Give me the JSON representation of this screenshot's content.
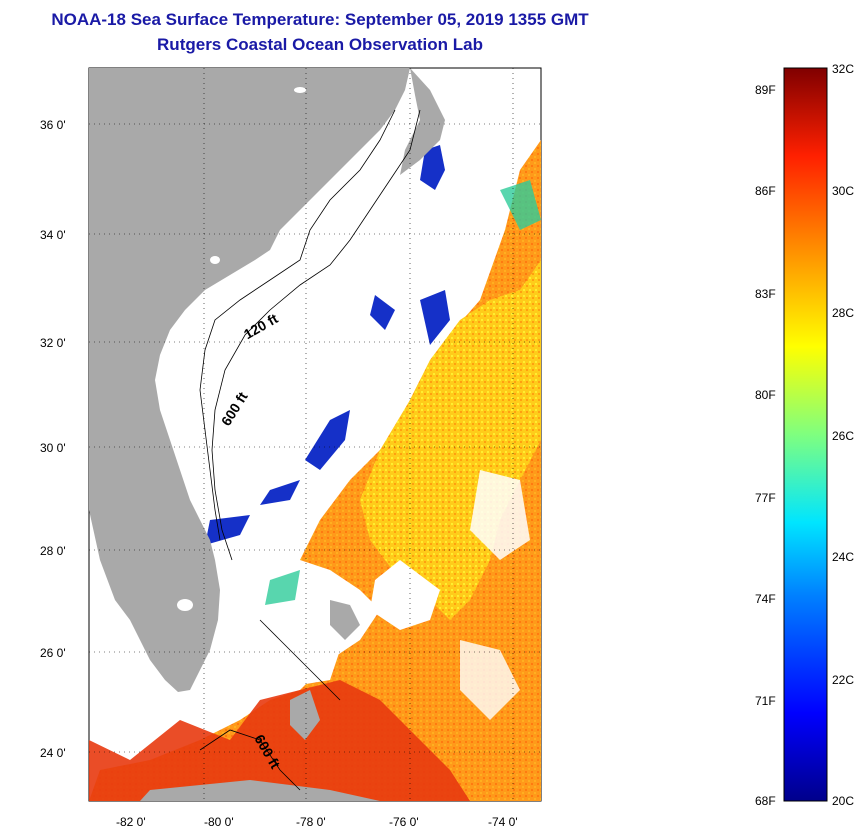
{
  "header": {
    "title": "NOAA-18 Sea Surface Temperature:  September 05, 2019 1355 GMT",
    "subtitle": "Rutgers Coastal Ocean Observation Lab"
  },
  "map": {
    "lon_ticks": [
      "-82 0'",
      "-80 0'",
      "-78 0'",
      "-76 0'",
      "-74 0'"
    ],
    "lat_ticks": [
      "36 0'",
      "34 0'",
      "32 0'",
      "30 0'",
      "28 0'",
      "26 0'",
      "24 0'"
    ],
    "contour_labels": [
      "120 ft",
      "600 ft",
      "600 ft"
    ],
    "colors": {
      "land": "#a9a9a9",
      "cloud": "#ffffff",
      "warm": "#ff8c1a",
      "hot": "#e83a10",
      "cool": "#1530c8"
    }
  },
  "colorbar": {
    "fahrenheit": [
      "89F",
      "86F",
      "83F",
      "80F",
      "77F",
      "74F",
      "71F",
      "68F"
    ],
    "celsius": [
      "32C",
      "30C",
      "28C",
      "26C",
      "24C",
      "22C",
      "20C"
    ],
    "range_c": [
      20,
      32
    ]
  }
}
